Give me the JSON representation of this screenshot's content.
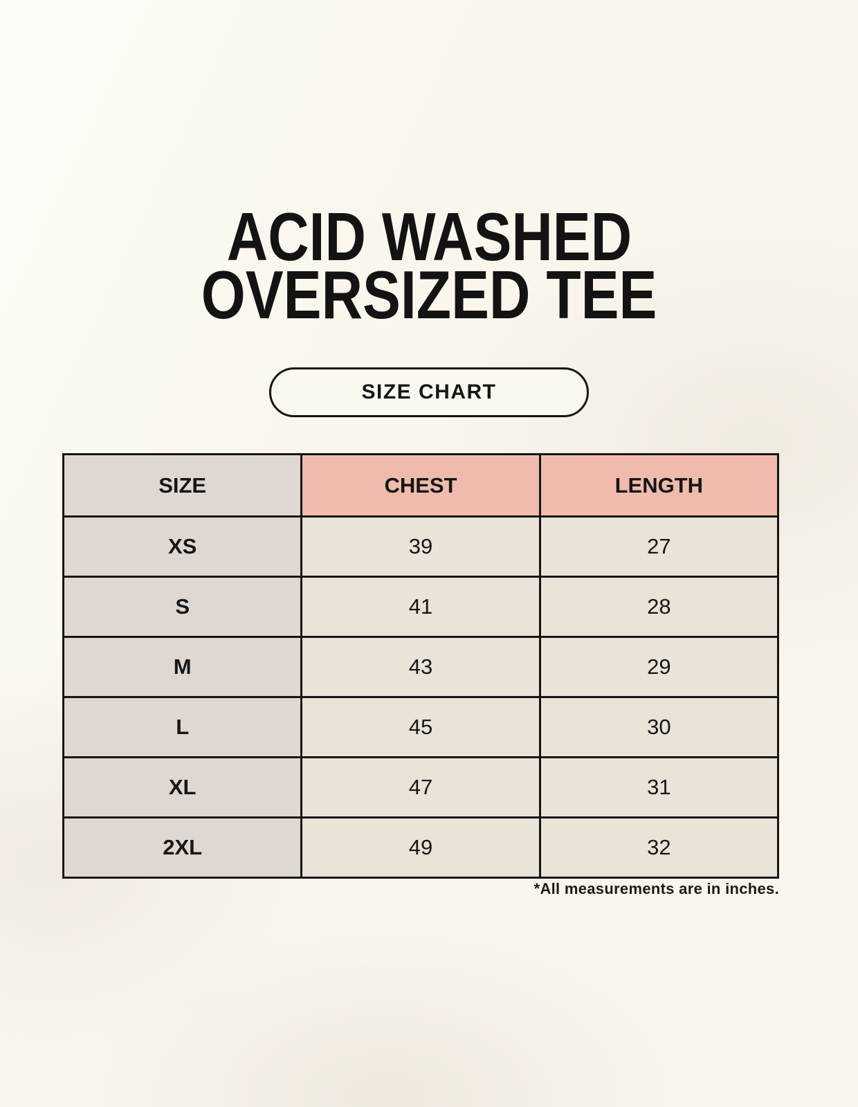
{
  "page": {
    "title": {
      "line1": "ACID WASHED",
      "line2": "OVERSIZED TEE"
    },
    "badge": {
      "label": "SIZE CHART"
    },
    "footnote": "*All measurements are in inches."
  },
  "colors": {
    "background": "#FAF6EC",
    "size_column_bg": "#DED7D2",
    "measure_header_bg": "#EFBCAC",
    "value_cell_bg": "#E9E3D8",
    "border": "#151515",
    "text": "#161616"
  },
  "chart_data": {
    "type": "table",
    "title": "ACID WASHED OVERSIZED TEE",
    "subtitle": "SIZE CHART",
    "columns": [
      "SIZE",
      "CHEST",
      "LENGTH"
    ],
    "rows": [
      [
        "XS",
        "39",
        "27"
      ],
      [
        "S",
        "41",
        "28"
      ],
      [
        "M",
        "43",
        "29"
      ],
      [
        "L",
        "45",
        "30"
      ],
      [
        "XL",
        "47",
        "31"
      ],
      [
        "2XL",
        "49",
        "32"
      ]
    ],
    "units": "inches",
    "note": "*All measurements are in inches."
  }
}
